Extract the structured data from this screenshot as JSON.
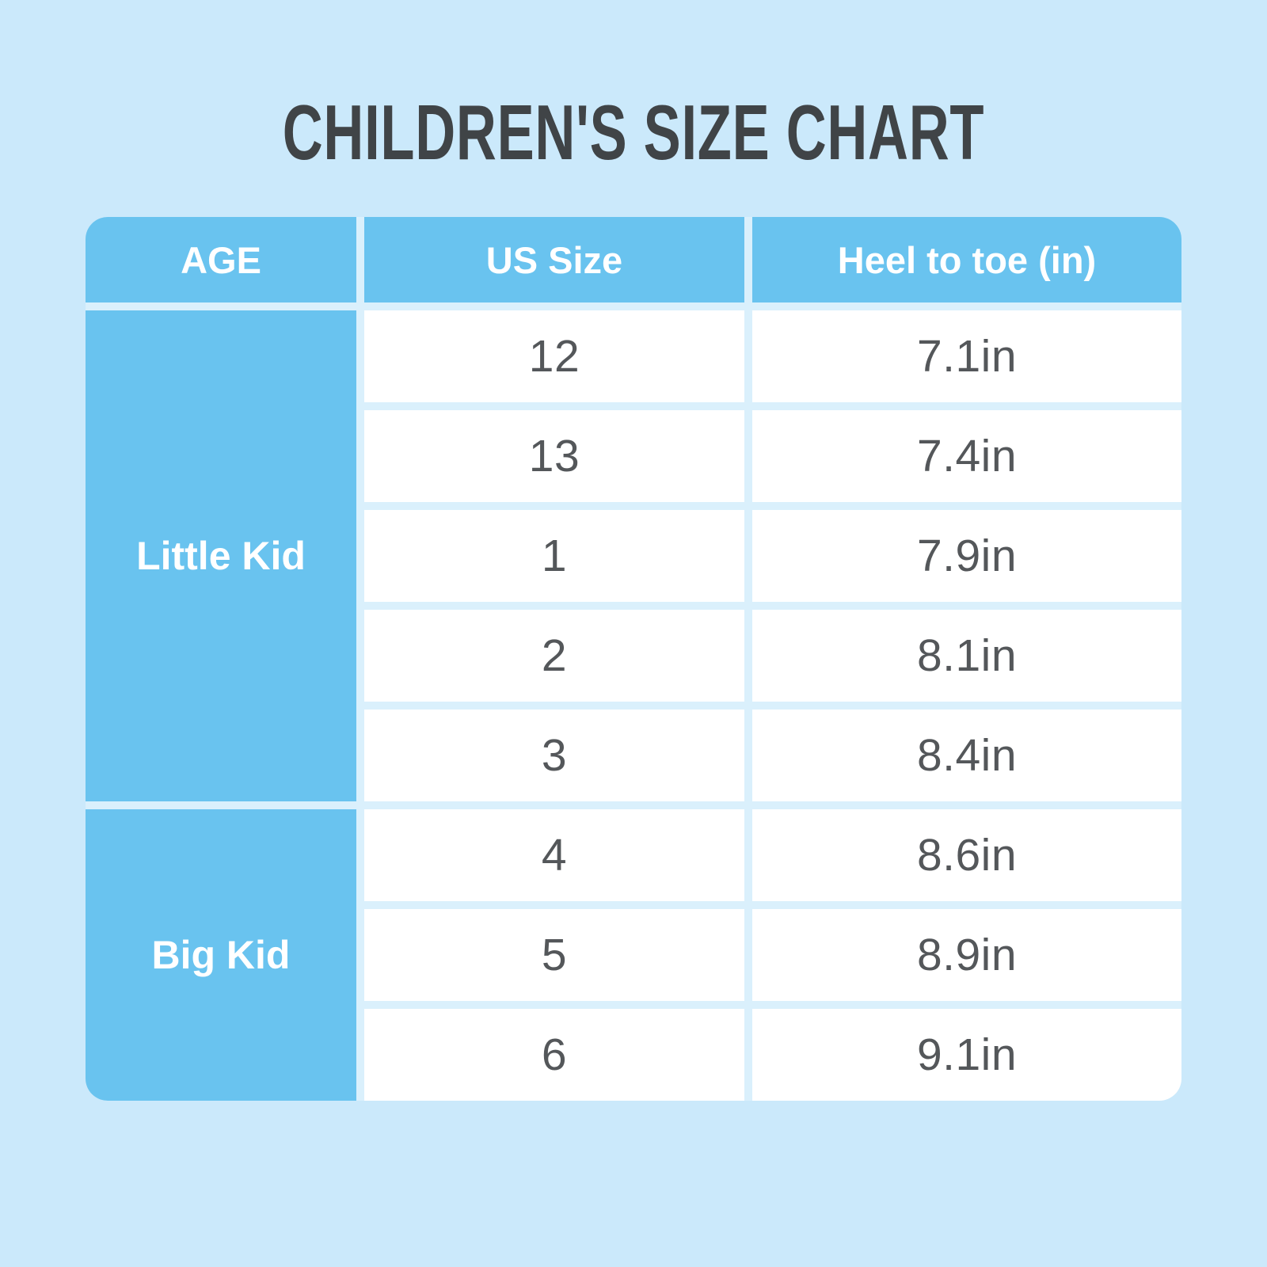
{
  "page": {
    "title": "CHILDREN'S SIZE CHART"
  },
  "colors": {
    "page_background": "#CBE9FB",
    "table_blue": "#69C3EF",
    "cell_gap": "#DAF0FC",
    "cell_background": "#FFFFFF",
    "title_text": "#404447",
    "header_text": "#FFFFFF",
    "body_text": "#54575A"
  },
  "chart_data": {
    "type": "table",
    "title": "CHILDREN'S SIZE CHART",
    "columns": [
      "AGE",
      "US Size",
      "Heel to toe (in)"
    ],
    "rows": [
      [
        "Little Kid",
        "12",
        "7.1in"
      ],
      [
        "Little Kid",
        "13",
        "7.4in"
      ],
      [
        "Little Kid",
        "1",
        "7.9in"
      ],
      [
        "Little Kid",
        "2",
        "8.1in"
      ],
      [
        "Little Kid",
        "3",
        "8.4in"
      ],
      [
        "Big Kid",
        "4",
        "8.6in"
      ],
      [
        "Big Kid",
        "5",
        "8.9in"
      ],
      [
        "Big Kid",
        "6",
        "9.1in"
      ]
    ]
  },
  "table": {
    "headers": {
      "age": "AGE",
      "us_size": "US Size",
      "heel": "Heel to toe (in)"
    },
    "groups": [
      {
        "age": "Little Kid",
        "rows": [
          {
            "us_size": "12",
            "heel": "7.1in"
          },
          {
            "us_size": "13",
            "heel": "7.4in"
          },
          {
            "us_size": "1",
            "heel": "7.9in"
          },
          {
            "us_size": "2",
            "heel": "8.1in"
          },
          {
            "us_size": "3",
            "heel": "8.4in"
          }
        ]
      },
      {
        "age": "Big Kid",
        "rows": [
          {
            "us_size": "4",
            "heel": "8.6in"
          },
          {
            "us_size": "5",
            "heel": "8.9in"
          },
          {
            "us_size": "6",
            "heel": "9.1in"
          }
        ]
      }
    ]
  }
}
